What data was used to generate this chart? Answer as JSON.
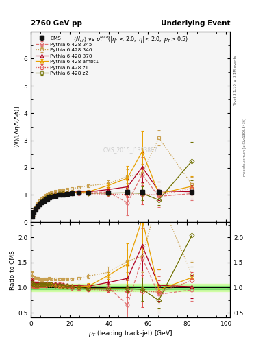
{
  "title_left": "2760 GeV pp",
  "title_right": "Underlying Event",
  "right_label_top": "Rivet 3.1.10, ≥ 3.1M events",
  "right_label_bot": "mcplots.cern.ch [arXiv:1306.3436]",
  "watermark": "CMS_2015_I1393887",
  "xlim": [
    0,
    102
  ],
  "ylim_main": [
    0,
    6.99
  ],
  "ylim_ratio": [
    0.4,
    2.3
  ],
  "cms_x": [
    0.5,
    1.5,
    2.5,
    3.5,
    4.5,
    5.5,
    6.5,
    7.5,
    8.5,
    9.5,
    10.5,
    12.5,
    14.5,
    16.5,
    18.5,
    21.0,
    24.5,
    29.5,
    39.5,
    49.5,
    57.0,
    65.5,
    82.5
  ],
  "cms_y": [
    0.22,
    0.35,
    0.48,
    0.58,
    0.67,
    0.74,
    0.79,
    0.84,
    0.87,
    0.9,
    0.93,
    0.97,
    1.0,
    1.02,
    1.04,
    1.06,
    1.08,
    1.09,
    1.09,
    1.1,
    1.1,
    1.1,
    1.1
  ],
  "cms_yerr": [
    0.02,
    0.02,
    0.02,
    0.02,
    0.02,
    0.02,
    0.02,
    0.02,
    0.02,
    0.02,
    0.02,
    0.02,
    0.02,
    0.02,
    0.02,
    0.02,
    0.02,
    0.02,
    0.02,
    0.05,
    0.1,
    0.1,
    0.1
  ],
  "p345_x": [
    0.5,
    1.5,
    2.5,
    3.5,
    4.5,
    5.5,
    6.5,
    7.5,
    8.5,
    9.5,
    10.5,
    12.5,
    14.5,
    16.5,
    18.5,
    21.0,
    24.5,
    29.5,
    39.5,
    49.5,
    57.0,
    65.5,
    82.5
  ],
  "p345_y": [
    0.25,
    0.38,
    0.52,
    0.63,
    0.72,
    0.79,
    0.85,
    0.9,
    0.94,
    0.97,
    1.0,
    1.04,
    1.07,
    1.08,
    1.09,
    1.1,
    1.12,
    1.12,
    1.1,
    0.72,
    1.75,
    0.95,
    1.05
  ],
  "p345_yerr": [
    0.01,
    0.01,
    0.01,
    0.01,
    0.01,
    0.01,
    0.01,
    0.01,
    0.01,
    0.01,
    0.01,
    0.01,
    0.01,
    0.01,
    0.01,
    0.01,
    0.03,
    0.05,
    0.08,
    0.45,
    0.65,
    0.4,
    0.25
  ],
  "p345_color": "#e07070",
  "p345_ls": "dashed",
  "p345_marker": "o",
  "p346_x": [
    0.5,
    1.5,
    2.5,
    3.5,
    4.5,
    5.5,
    6.5,
    7.5,
    8.5,
    9.5,
    10.5,
    12.5,
    14.5,
    16.5,
    18.5,
    21.0,
    24.5,
    29.5,
    39.5,
    49.5,
    57.0,
    65.5,
    82.5
  ],
  "p346_y": [
    0.28,
    0.42,
    0.57,
    0.69,
    0.78,
    0.86,
    0.92,
    0.98,
    1.02,
    1.06,
    1.09,
    1.13,
    1.17,
    1.2,
    1.22,
    1.24,
    1.28,
    1.34,
    1.42,
    1.68,
    1.78,
    3.1,
    1.38
  ],
  "p346_yerr": [
    0.01,
    0.01,
    0.01,
    0.01,
    0.01,
    0.01,
    0.01,
    0.01,
    0.01,
    0.01,
    0.01,
    0.01,
    0.01,
    0.01,
    0.01,
    0.01,
    0.03,
    0.05,
    0.12,
    0.25,
    0.35,
    0.28,
    0.28
  ],
  "p346_color": "#c8a050",
  "p346_ls": "dotted",
  "p346_marker": "s",
  "p370_x": [
    0.5,
    1.5,
    2.5,
    3.5,
    4.5,
    5.5,
    6.5,
    7.5,
    8.5,
    9.5,
    10.5,
    12.5,
    14.5,
    16.5,
    18.5,
    21.0,
    24.5,
    29.5,
    39.5,
    49.5,
    57.0,
    65.5,
    82.5
  ],
  "p370_y": [
    0.25,
    0.38,
    0.52,
    0.63,
    0.72,
    0.79,
    0.85,
    0.9,
    0.94,
    0.97,
    1.0,
    1.04,
    1.07,
    1.08,
    1.09,
    1.1,
    1.12,
    1.12,
    1.2,
    1.3,
    2.02,
    1.15,
    1.12
  ],
  "p370_yerr": [
    0.01,
    0.01,
    0.01,
    0.01,
    0.01,
    0.01,
    0.01,
    0.01,
    0.01,
    0.01,
    0.01,
    0.01,
    0.01,
    0.01,
    0.01,
    0.01,
    0.03,
    0.05,
    0.08,
    0.28,
    0.55,
    0.35,
    0.25
  ],
  "p370_color": "#b00020",
  "p370_ls": "solid",
  "p370_marker": "^",
  "pambt1_x": [
    0.5,
    1.5,
    2.5,
    3.5,
    4.5,
    5.5,
    6.5,
    7.5,
    8.5,
    9.5,
    10.5,
    12.5,
    14.5,
    16.5,
    18.5,
    21.0,
    24.5,
    29.5,
    39.5,
    49.5,
    57.0,
    65.5,
    82.5
  ],
  "pambt1_y": [
    0.23,
    0.36,
    0.49,
    0.6,
    0.7,
    0.77,
    0.83,
    0.88,
    0.92,
    0.95,
    0.98,
    1.01,
    1.03,
    1.05,
    1.06,
    1.08,
    1.1,
    1.12,
    1.35,
    1.62,
    2.6,
    1.05,
    1.32
  ],
  "pambt1_yerr": [
    0.01,
    0.01,
    0.01,
    0.01,
    0.01,
    0.01,
    0.01,
    0.01,
    0.01,
    0.01,
    0.01,
    0.01,
    0.01,
    0.01,
    0.01,
    0.01,
    0.03,
    0.06,
    0.08,
    0.45,
    0.75,
    0.45,
    0.38
  ],
  "pambt1_color": "#e8a000",
  "pambt1_ls": "solid",
  "pambt1_marker": "^",
  "pz1_x": [
    0.5,
    1.5,
    2.5,
    3.5,
    4.5,
    5.5,
    6.5,
    7.5,
    8.5,
    9.5,
    10.5,
    12.5,
    14.5,
    16.5,
    18.5,
    21.0,
    24.5,
    29.5,
    39.5,
    49.5,
    57.0,
    65.5,
    82.5
  ],
  "pz1_y": [
    0.23,
    0.36,
    0.49,
    0.6,
    0.7,
    0.77,
    0.83,
    0.88,
    0.92,
    0.95,
    0.98,
    1.01,
    1.04,
    1.05,
    1.06,
    1.05,
    1.05,
    1.05,
    1.03,
    1.02,
    1.02,
    1.0,
    1.25
  ],
  "pz1_yerr": [
    0.01,
    0.01,
    0.01,
    0.01,
    0.01,
    0.01,
    0.01,
    0.01,
    0.01,
    0.01,
    0.01,
    0.01,
    0.01,
    0.01,
    0.01,
    0.01,
    0.03,
    0.04,
    0.04,
    0.12,
    0.35,
    0.25,
    0.18
  ],
  "pz1_color": "#e05050",
  "pz1_ls": "dotted",
  "pz1_marker": "D",
  "pz2_x": [
    0.5,
    1.5,
    2.5,
    3.5,
    4.5,
    5.5,
    6.5,
    7.5,
    8.5,
    9.5,
    10.5,
    12.5,
    14.5,
    16.5,
    18.5,
    21.0,
    24.5,
    29.5,
    39.5,
    49.5,
    57.0,
    65.5,
    82.5
  ],
  "pz2_y": [
    0.24,
    0.37,
    0.5,
    0.61,
    0.71,
    0.78,
    0.84,
    0.89,
    0.93,
    0.96,
    0.99,
    1.02,
    1.05,
    1.06,
    1.07,
    1.08,
    1.08,
    1.07,
    1.07,
    1.08,
    1.06,
    0.82,
    2.25
  ],
  "pz2_yerr": [
    0.01,
    0.01,
    0.01,
    0.01,
    0.01,
    0.01,
    0.01,
    0.01,
    0.01,
    0.01,
    0.01,
    0.01,
    0.01,
    0.01,
    0.01,
    0.01,
    0.03,
    0.04,
    0.04,
    0.08,
    0.25,
    0.18,
    0.7
  ],
  "pz2_color": "#707000",
  "pz2_ls": "solid",
  "pz2_marker": "D",
  "cms_band_err_inner": 0.03,
  "cms_band_err_outer": 0.07,
  "bg_color": "#f5f5f5"
}
